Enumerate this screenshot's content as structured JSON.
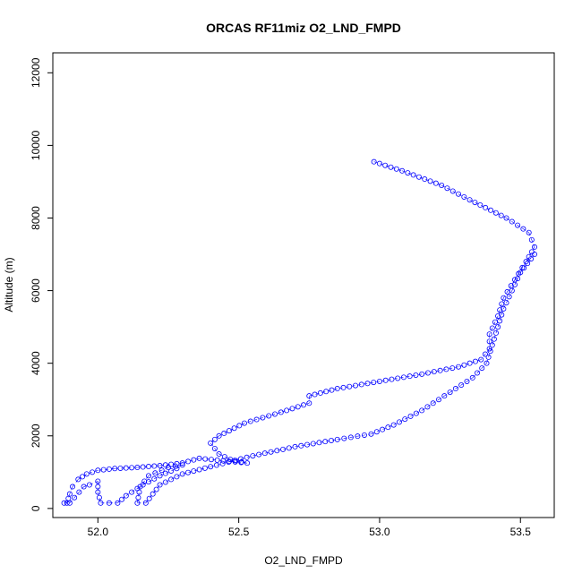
{
  "chart_data": {
    "type": "scatter",
    "title": "ORCAS RF11miz O2_LND_FMPD",
    "xlabel": "O2_LND_FMPD",
    "ylabel": "Altitude (m)",
    "xlim": [
      51.84,
      53.62
    ],
    "ylim": [
      -250,
      12550
    ],
    "xticks": [
      "52.0",
      "52.5",
      "53.0",
      "53.5"
    ],
    "xtick_values": [
      52.0,
      52.5,
      53.0,
      53.5
    ],
    "yticks": [
      "0",
      "2000",
      "4000",
      "6000",
      "8000",
      "10000",
      "12000"
    ],
    "ytick_values": [
      0,
      2000,
      4000,
      6000,
      8000,
      10000,
      12000
    ],
    "grid": false,
    "marker": "open-circle",
    "color": "#0000ff",
    "series": [
      {
        "points": [
          [
            52.98,
            9550
          ],
          [
            53.08,
            9300
          ],
          [
            53.22,
            8900
          ],
          [
            53.32,
            8500
          ],
          [
            53.45,
            8000
          ],
          [
            53.53,
            7600
          ],
          [
            53.55,
            7200
          ],
          [
            53.52,
            6800
          ],
          [
            53.48,
            6300
          ],
          [
            53.44,
            5800
          ],
          [
            53.42,
            5300
          ],
          [
            53.39,
            4800
          ],
          [
            53.39,
            4400
          ],
          [
            53.36,
            4100
          ],
          [
            53.28,
            3900
          ],
          [
            53.15,
            3700
          ],
          [
            53.0,
            3500
          ],
          [
            52.85,
            3300
          ],
          [
            52.75,
            3100
          ],
          [
            52.75,
            2900
          ],
          [
            52.65,
            2650
          ],
          [
            52.52,
            2350
          ],
          [
            52.43,
            2000
          ],
          [
            52.4,
            1800
          ],
          [
            52.43,
            1500
          ],
          [
            52.47,
            1350
          ],
          [
            52.53,
            1250
          ],
          [
            52.36,
            1380
          ],
          [
            52.3,
            1250
          ],
          [
            52.22,
            1180
          ],
          [
            52.14,
            1130
          ],
          [
            52.06,
            1100
          ],
          [
            52.0,
            1050
          ],
          [
            51.96,
            950
          ],
          [
            51.93,
            800
          ],
          [
            51.91,
            600
          ],
          [
            51.9,
            400
          ],
          [
            51.89,
            150
          ],
          [
            51.88,
            150
          ],
          [
            51.9,
            150
          ],
          [
            51.95,
            600
          ],
          [
            51.97,
            650
          ],
          [
            52.0,
            750
          ],
          [
            52.0,
            450
          ],
          [
            52.01,
            150
          ],
          [
            52.04,
            150
          ],
          [
            52.07,
            150
          ],
          [
            52.1,
            350
          ],
          [
            52.16,
            650
          ],
          [
            52.22,
            900
          ],
          [
            52.28,
            1100
          ],
          [
            52.3,
            1200
          ],
          [
            52.25,
            1130
          ],
          [
            52.18,
            900
          ],
          [
            52.15,
            600
          ],
          [
            52.14,
            150
          ],
          [
            52.17,
            150
          ],
          [
            52.22,
            650
          ],
          [
            52.3,
            950
          ],
          [
            52.4,
            1150
          ],
          [
            52.55,
            1450
          ],
          [
            52.7,
            1700
          ],
          [
            52.85,
            1900
          ],
          [
            52.97,
            2050
          ],
          [
            53.05,
            2300
          ],
          [
            53.15,
            2700
          ],
          [
            53.25,
            3200
          ],
          [
            53.33,
            3600
          ],
          [
            53.38,
            4000
          ],
          [
            53.4,
            4500
          ],
          [
            53.42,
            5000
          ],
          [
            53.44,
            5500
          ],
          [
            53.47,
            6000
          ],
          [
            53.5,
            6500
          ],
          [
            53.55,
            7000
          ]
        ]
      }
    ]
  }
}
